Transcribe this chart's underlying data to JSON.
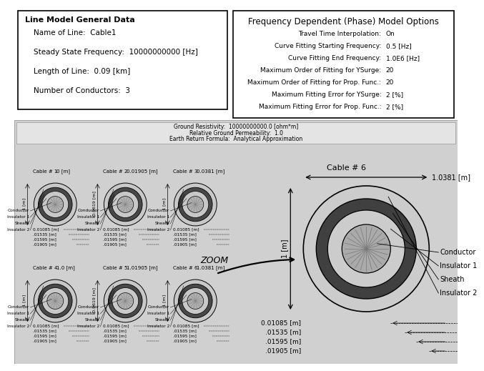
{
  "white": "#ffffff",
  "box1_title": "Line Model General Data",
  "box1_lines": [
    "Name of Line:  Cable1",
    "Steady State Frequency:  10000000000 [Hz]",
    "Length of Line:  0.09 [km]",
    "Number of Conductors:  3"
  ],
  "box2_title": "Frequency Dependent (Phase) Model Options",
  "box2_label_lines": [
    "Travel Time Interpolation:",
    "Curve Fitting Starting Frequency:",
    "Curve Fitting End Frequency:",
    "Maximum Order of Fitting for YSurge:",
    "Maximum Order of Fitting for Prop. Func.:",
    "Maximum Fitting Error for YSurge:",
    "Maximum Fitting Error for Prop. Func.:"
  ],
  "box2_value_lines": [
    "On",
    "0.5 [Hz]",
    "1.0E6 [Hz]",
    "20",
    "20",
    "2 [%]",
    "2 [%]"
  ],
  "cable_data": [
    [
      "Cable # 1",
      "0 [m]",
      "-1 [m]"
    ],
    [
      "Cable # 2",
      "0.01905 [m]",
      "-0.9619 [m]"
    ],
    [
      "Cable # 3",
      "0.0381 [m]",
      "-1 [m]"
    ],
    [
      "Cable # 4",
      "1.0 [m]",
      "-1 [m]"
    ],
    [
      "Cable # 5",
      "1.01905 [m]",
      "-0.9619 [m]"
    ],
    [
      "Cable # 6",
      "1.0381 [m]",
      "-1 [m]"
    ]
  ],
  "dim_labels": [
    "0.01085 [m]",
    ".01535 [m]",
    ".01595 [m]",
    ".01905 [m]"
  ],
  "layer_names": [
    "Conductor",
    "Insulator 1",
    "Sheath",
    "Insulator 2"
  ],
  "zoom_cable_label": "Cable # 6",
  "zoom_outer_label": "1.0381 [m]",
  "zoom_left_label": "1 [m]",
  "ground_line1": "Ground Resistivity:  10000000000.0 [ohm*m]",
  "ground_line2": "Relative Ground Permeability:  1.0",
  "ground_line3": "Earth Return Formula:  Analytical Approximation",
  "zoom_text": "ZOOM"
}
